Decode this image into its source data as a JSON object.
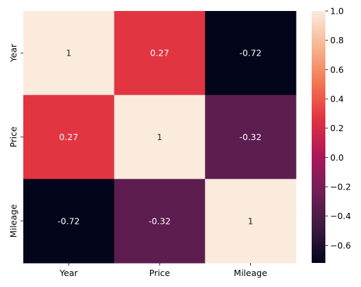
{
  "chart_data": {
    "type": "heatmap",
    "x_categories": [
      "Year",
      "Price",
      "Mileage"
    ],
    "y_categories": [
      "Year",
      "Price",
      "Mileage"
    ],
    "values": [
      [
        1,
        0.27,
        -0.72
      ],
      [
        0.27,
        1,
        -0.32
      ],
      [
        -0.72,
        -0.32,
        1
      ]
    ],
    "annotations": [
      [
        "1",
        "0.27",
        "-0.72"
      ],
      [
        "0.27",
        "1",
        "-0.32"
      ],
      [
        "-0.72",
        "-0.32",
        "1"
      ]
    ],
    "colorbar": {
      "vmin": -0.72,
      "vmax": 1.0,
      "ticks": [
        1.0,
        0.8,
        0.6,
        0.4,
        0.2,
        0.0,
        -0.2,
        -0.4,
        -0.6
      ],
      "tick_labels": [
        "1.0",
        "0.8",
        "0.6",
        "0.4",
        "0.2",
        "0.0",
        "−0.2",
        "−0.4",
        "−0.6"
      ],
      "colormap": "rocket",
      "colors": [
        "#03051a",
        "#3c1a42",
        "#701f57",
        "#ad1759",
        "#e13342",
        "#f37651",
        "#f6b48f",
        "#faebdd"
      ]
    },
    "annotation_colors": {
      "light": "#ffffff",
      "dark": "#262626"
    },
    "grid": false,
    "legend": "none"
  }
}
